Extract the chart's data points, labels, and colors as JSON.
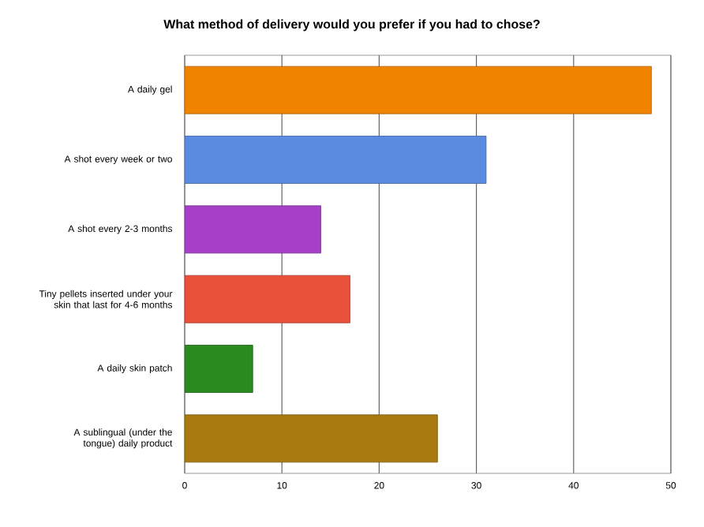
{
  "chart_data": {
    "type": "bar",
    "orientation": "horizontal",
    "title": "What method of delivery would you prefer if you had to chose?",
    "categories": [
      "A daily gel",
      "A shot every week or two",
      "A shot every 2-3 months",
      "Tiny pellets inserted under your skin that last for 4-6 months",
      "A daily skin patch",
      "A sublingual (under the tongue) daily product"
    ],
    "values": [
      48,
      31,
      14,
      17,
      7,
      26
    ],
    "colors": [
      "#f08400",
      "#5a8be0",
      "#a640c8",
      "#e8503a",
      "#2a8a1e",
      "#a87a10"
    ],
    "xlim": [
      0,
      50
    ],
    "xticks": [
      0,
      10,
      20,
      30,
      40,
      50
    ],
    "grid": "x"
  }
}
